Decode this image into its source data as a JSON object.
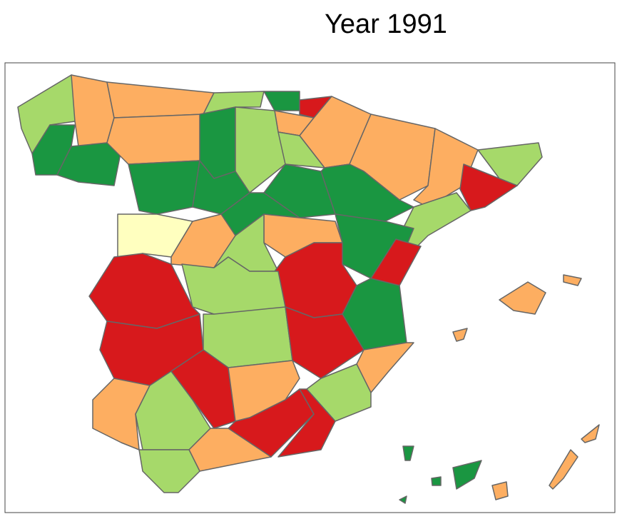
{
  "title": "Year 1991"
}
